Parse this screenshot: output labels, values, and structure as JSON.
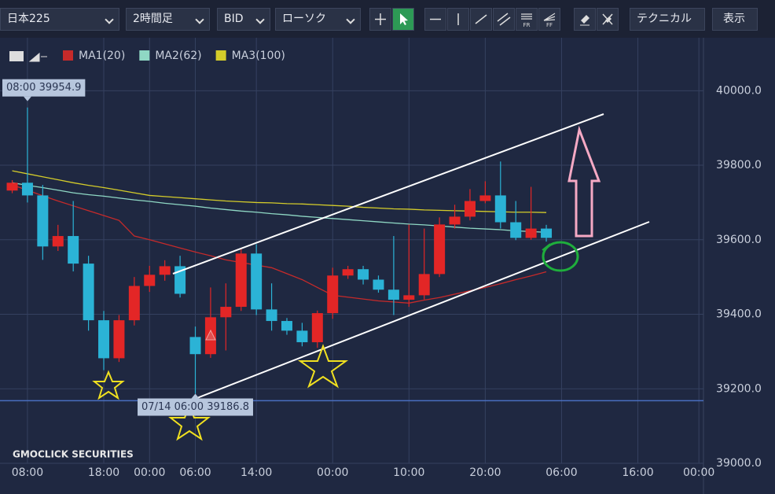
{
  "toolbar": {
    "symbol": "日本225",
    "interval": "2時間足",
    "price_type": "BID",
    "chart_style": "ローソク",
    "fr": "FR",
    "ff": "FF",
    "technical": "テクニカル",
    "display": "表示"
  },
  "logo": "GMOCLICK SECURITIES",
  "chart_data": {
    "type": "candlestick",
    "up_color": "#e32626",
    "down_color": "#2bb3d6",
    "grid": true,
    "x": [
      0,
      1,
      2,
      3,
      4,
      5,
      6,
      7,
      8,
      9,
      10,
      11,
      12,
      13,
      14,
      15,
      16,
      17,
      18,
      19,
      20,
      21,
      22,
      23,
      24,
      25,
      26,
      27,
      28,
      29,
      30,
      31,
      32,
      33,
      34,
      35
    ],
    "open": [
      39732,
      39753,
      39719,
      39582,
      39610,
      39536,
      39384,
      39282,
      39384,
      39476,
      39506,
      39529,
      39339,
      39293,
      39392,
      39420,
      39563,
      39413,
      39382,
      39356,
      39325,
      39403,
      39504,
      39521,
      39493,
      39466,
      39439,
      39451,
      39508,
      39641,
      39662,
      39704,
      39719,
      39647,
      39605,
      39630
    ],
    "high": [
      39760,
      39954.9,
      39747,
      39640,
      39704,
      39557,
      39409,
      39398,
      39500,
      39530,
      39545,
      39557,
      39367,
      39472,
      39483,
      39578,
      39588,
      39483,
      39390,
      39377,
      39410,
      39525,
      39530,
      39530,
      39504,
      39610,
      39641,
      39630,
      39660,
      39694,
      39736,
      39757,
      39810,
      39704,
      39742,
      39640
    ],
    "low": [
      39725,
      39700,
      39546,
      39570,
      39515,
      39356,
      39250,
      39272,
      39370,
      39460,
      39490,
      39445,
      39186.8,
      39283,
      39303,
      39409,
      39398,
      39356,
      39345,
      39314,
      39310,
      39388,
      39495,
      39480,
      39458,
      39398,
      39420,
      39440,
      39500,
      39630,
      39652,
      39698,
      39630,
      39599,
      39600,
      39595
    ],
    "close": [
      39753,
      39719,
      39582,
      39610,
      39536,
      39384,
      39282,
      39384,
      39476,
      39506,
      39529,
      39455,
      39293,
      39392,
      39420,
      39563,
      39413,
      39382,
      39356,
      39325,
      39403,
      39504,
      39521,
      39493,
      39466,
      39439,
      39451,
      39508,
      39641,
      39662,
      39704,
      39719,
      39647,
      39605,
      39630,
      39605
    ],
    "series": [
      {
        "name": "MA1(20)",
        "color": "#c62a2a",
        "values": [
          39747,
          39733,
          39718,
          39704,
          39691,
          39678,
          39665,
          39652,
          39610,
          39600,
          39589,
          39578,
          39567,
          39557,
          39546,
          39539,
          39532,
          39525,
          39509,
          39493,
          39472,
          39451,
          39446,
          39441,
          39436,
          39433,
          39430,
          39438,
          39445,
          39454,
          39463,
          39472,
          39482,
          39493,
          39503,
          39514
        ]
      },
      {
        "name": "MA2(62)",
        "color": "#8fd8c4",
        "values": [
          39753,
          39746,
          39740,
          39733,
          39726,
          39721,
          39717,
          39712,
          39707,
          39703,
          39698,
          39694,
          39690,
          39685,
          39681,
          39677,
          39674,
          39670,
          39667,
          39663,
          39660,
          39657,
          39654,
          39651,
          39648,
          39645,
          39642,
          39640,
          39637,
          39634,
          39631,
          39629,
          39627,
          39624,
          39622,
          39620
        ]
      },
      {
        "name": "MA3(100)",
        "color": "#d4cc2a",
        "values": [
          39785,
          39777,
          39769,
          39761,
          39753,
          39746,
          39740,
          39733,
          39726,
          39719,
          39716,
          39713,
          39710,
          39707,
          39704,
          39702,
          39700,
          39699,
          39697,
          39696,
          39694,
          39692,
          39690,
          39687,
          39685,
          39683,
          39682,
          39680,
          39679,
          39678,
          39677,
          39676,
          39675,
          39674,
          39674,
          39673
        ]
      }
    ],
    "xlim": [
      -0.8,
      45.3
    ],
    "xticks": [
      {
        "value": 1,
        "label": "08:00"
      },
      {
        "value": 6,
        "label": "18:00"
      },
      {
        "value": 9,
        "label": "00:00"
      },
      {
        "value": 12,
        "label": "06:00"
      },
      {
        "value": 16,
        "label": "14:00"
      },
      {
        "value": 21,
        "label": "00:00"
      },
      {
        "value": 26,
        "label": "10:00"
      },
      {
        "value": 31,
        "label": "20:00"
      },
      {
        "value": 36,
        "label": "06:00"
      },
      {
        "value": 41,
        "label": "16:00"
      },
      {
        "value": 45,
        "label": "00:00"
      }
    ],
    "ylim": [
      39000,
      40140
    ],
    "yticks": [
      {
        "value": 39000,
        "label": "39000.0"
      },
      {
        "value": 39200,
        "label": "39200.0"
      },
      {
        "value": 39400,
        "label": "39400.0"
      },
      {
        "value": 39600,
        "label": "39600.0"
      },
      {
        "value": 39800,
        "label": "39800.0"
      },
      {
        "value": 40000,
        "label": "40000.0"
      }
    ],
    "horizontal_line": 39168,
    "annotations": [
      {
        "text": "08:00 39954.9",
        "x": 1,
        "y": 39954.9
      },
      {
        "text": "07/14 06:00 39186.8",
        "x": 12,
        "y": 39186.8
      }
    ]
  }
}
